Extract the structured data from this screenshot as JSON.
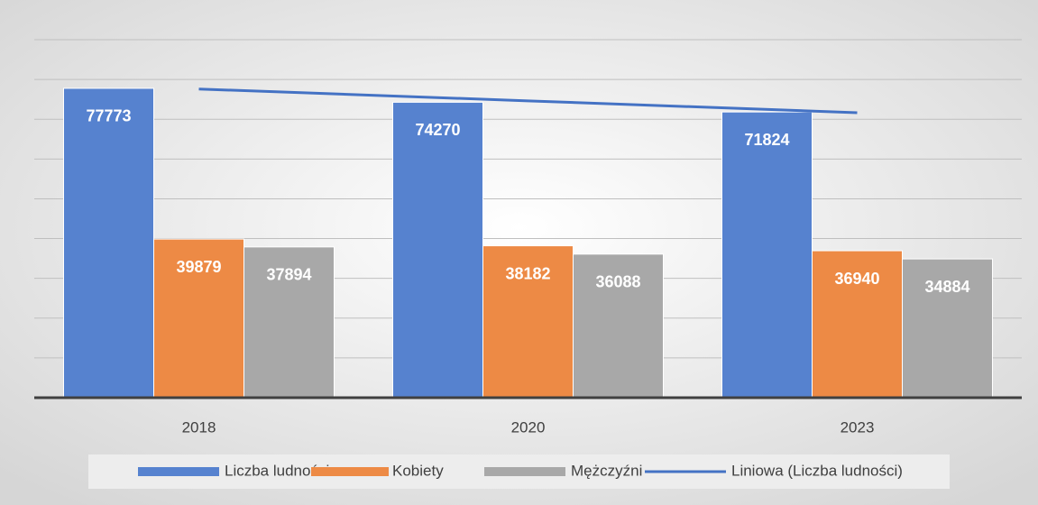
{
  "chart_data": {
    "type": "bar",
    "categories": [
      "2018",
      "2020",
      "2023"
    ],
    "series": [
      {
        "name": "Liczba ludności",
        "color": "#5682cf",
        "values": [
          77773,
          74270,
          71824
        ]
      },
      {
        "name": "Kobiety",
        "color": "#ed8a45",
        "values": [
          39879,
          38182,
          36940
        ]
      },
      {
        "name": "Mężczyźni",
        "color": "#a8a8a8",
        "values": [
          37894,
          36088,
          34884
        ]
      },
      {
        "name": "Liniowa (Liczba ludności)",
        "color": "#4472c4",
        "type": "line",
        "values": [
          77597,
          74622,
          71648
        ]
      }
    ],
    "ylim": [
      0,
      90000
    ],
    "yticks": [
      0,
      10000,
      20000,
      30000,
      40000,
      50000,
      60000,
      70000,
      80000,
      90000
    ],
    "grid": true,
    "legend": "bottom"
  }
}
